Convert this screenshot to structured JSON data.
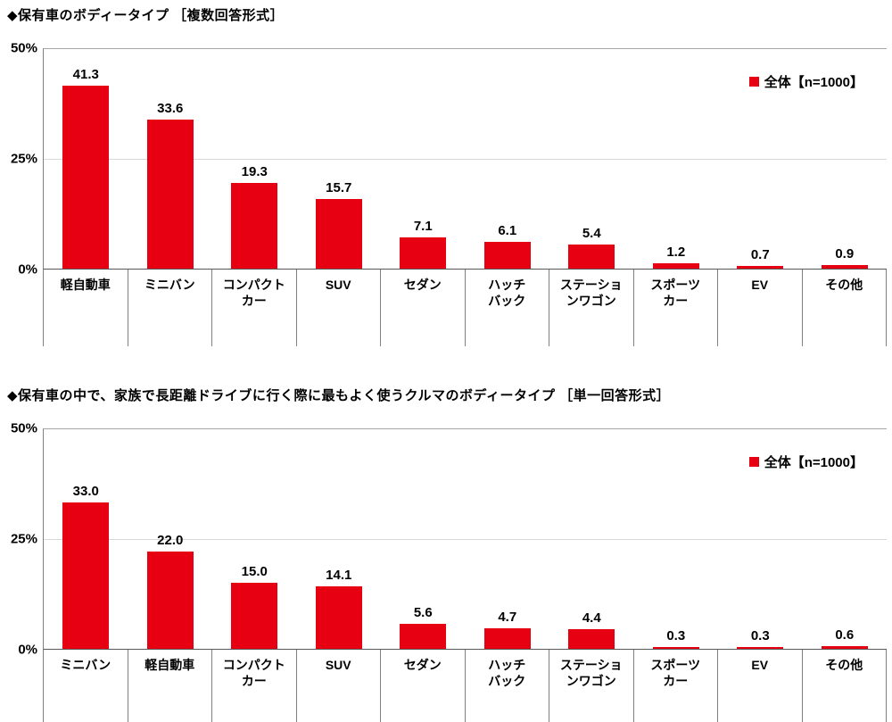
{
  "page": {
    "background": "#ffffff"
  },
  "colors": {
    "bar": "#e60012",
    "legend_swatch": "#e60012",
    "axis": "#808080"
  },
  "chart_data": [
    {
      "type": "bar",
      "title": "◆保有車のボディータイプ ［複数回答形式］",
      "legend": "全体【n=1000】",
      "legend_position": "top-right",
      "categories": [
        "軽自動車",
        "ミニバン",
        "コンパクト\nカー",
        "SUV",
        "セダン",
        "ハッチ\nバック",
        "ステーショ\nンワゴン",
        "スポーツ\nカー",
        "EV",
        "その他"
      ],
      "values": [
        41.3,
        33.6,
        19.3,
        15.7,
        7.1,
        6.1,
        5.4,
        1.2,
        0.7,
        0.9
      ],
      "xlabel": "",
      "ylabel": "",
      "ylim": [
        0,
        50
      ],
      "yticks": [
        "50%",
        "25%",
        "0%"
      ],
      "grid": "horizontal gridlines at 25% and 50%"
    },
    {
      "type": "bar",
      "title": "◆保有車の中で、家族で長距離ドライブに行く際に最もよく使うクルマのボディータイプ ［単一回答形式］",
      "legend": "全体【n=1000】",
      "legend_position": "top-right",
      "categories": [
        "ミニバン",
        "軽自動車",
        "コンパクト\nカー",
        "SUV",
        "セダン",
        "ハッチ\nバック",
        "ステーショ\nンワゴン",
        "スポーツ\nカー",
        "EV",
        "その他"
      ],
      "values": [
        33.0,
        22.0,
        15.0,
        14.1,
        5.6,
        4.7,
        4.4,
        0.3,
        0.3,
        0.6
      ],
      "xlabel": "",
      "ylabel": "",
      "ylim": [
        0,
        50
      ],
      "yticks": [
        "50%",
        "25%",
        "0%"
      ],
      "grid": "horizontal gridlines at 25% and 50%"
    }
  ]
}
